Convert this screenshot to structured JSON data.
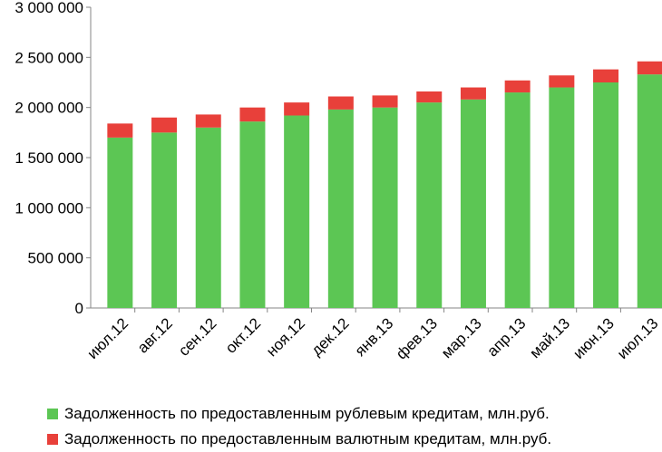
{
  "chart_data": {
    "type": "bar",
    "stacked": true,
    "categories": [
      "июл.12",
      "авг.12",
      "сен.12",
      "окт.12",
      "ноя.12",
      "дек.12",
      "янв.13",
      "фев.13",
      "мар.13",
      "апр.13",
      "май.13",
      "июн.13",
      "июл.13"
    ],
    "series": [
      {
        "name": "Задолженность по предоставленным рублевым кредитам, млн.руб.",
        "color": "#5CC654",
        "values": [
          1700000,
          1750000,
          1800000,
          1860000,
          1920000,
          1980000,
          2000000,
          2050000,
          2080000,
          2150000,
          2200000,
          2250000,
          2330000
        ]
      },
      {
        "name": "Задолженность по предоставленным валютным кредитам, млн.руб.",
        "color": "#E8403A",
        "values": [
          140000,
          150000,
          130000,
          140000,
          130000,
          130000,
          120000,
          110000,
          120000,
          120000,
          120000,
          130000,
          130000
        ]
      }
    ],
    "y_ticks": [
      "0",
      "500 000",
      "1 000 000",
      "1 500 000",
      "2 000 000",
      "2 500 000",
      "3 000 000"
    ],
    "ylim": [
      0,
      3000000
    ],
    "grid": false,
    "legend_position": "bottom"
  }
}
